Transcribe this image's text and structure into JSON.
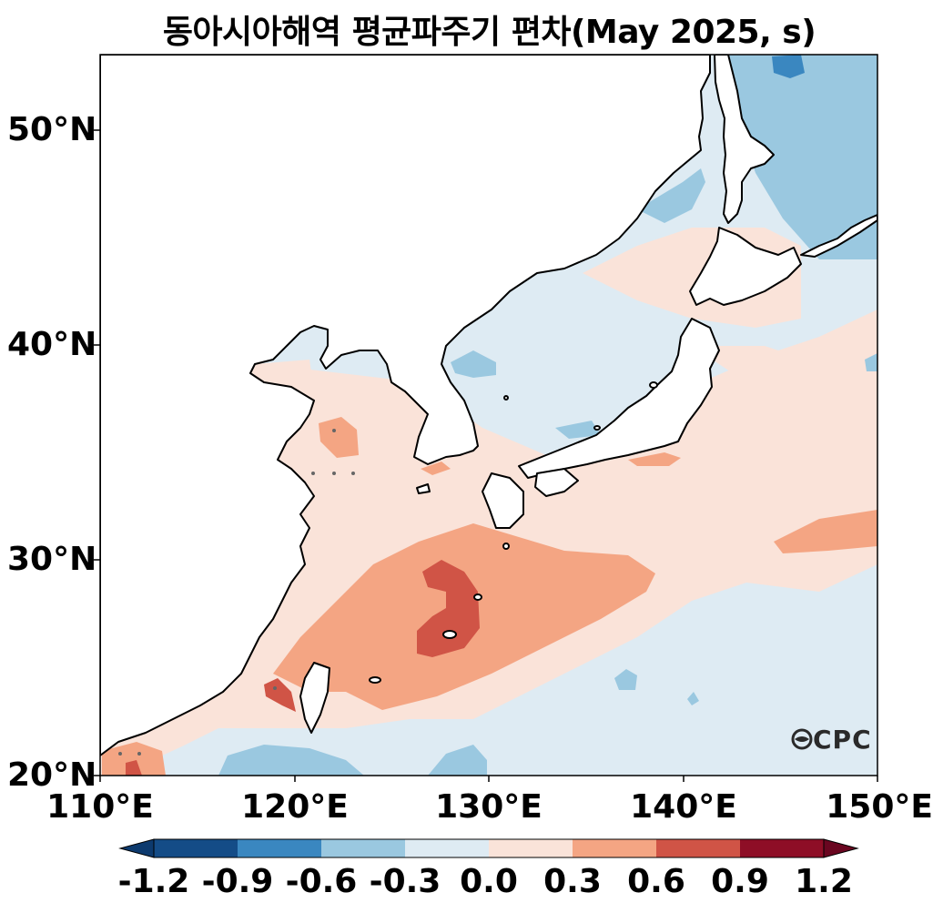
{
  "title": "동아시아해역 평균파주기 편차(May 2025, s)",
  "logo_text": "CPC",
  "map": {
    "lat_ticks": [
      "50°N",
      "40°N",
      "30°N",
      "20°N"
    ],
    "lon_ticks": [
      "110°E",
      "120°E",
      "130°E",
      "140°E",
      "150°E"
    ],
    "lon_range": [
      110,
      150
    ],
    "lat_range": [
      20,
      53.5
    ]
  },
  "colorbar": {
    "ticks": [
      "-1.2",
      "-0.9",
      "-0.6",
      "-0.3",
      "0.0",
      "0.3",
      "0.6",
      "0.9",
      "1.2"
    ],
    "colors": [
      "#144c87",
      "#3a87c0",
      "#9ac8e0",
      "#deebf3",
      "#fae3d9",
      "#f4a583",
      "#d05446",
      "#8e0e26"
    ],
    "extend_low_color": "#0d3a6e",
    "extend_high_color": "#6a0620"
  },
  "palette": {
    "neg_03": "#deebf3",
    "neg_06": "#9ac8e0",
    "neg_09": "#3a87c0",
    "pos_03": "#fae3d9",
    "pos_06": "#f4a583",
    "pos_09": "#d05446",
    "land": "#ffffff",
    "coast": "#000000"
  }
}
